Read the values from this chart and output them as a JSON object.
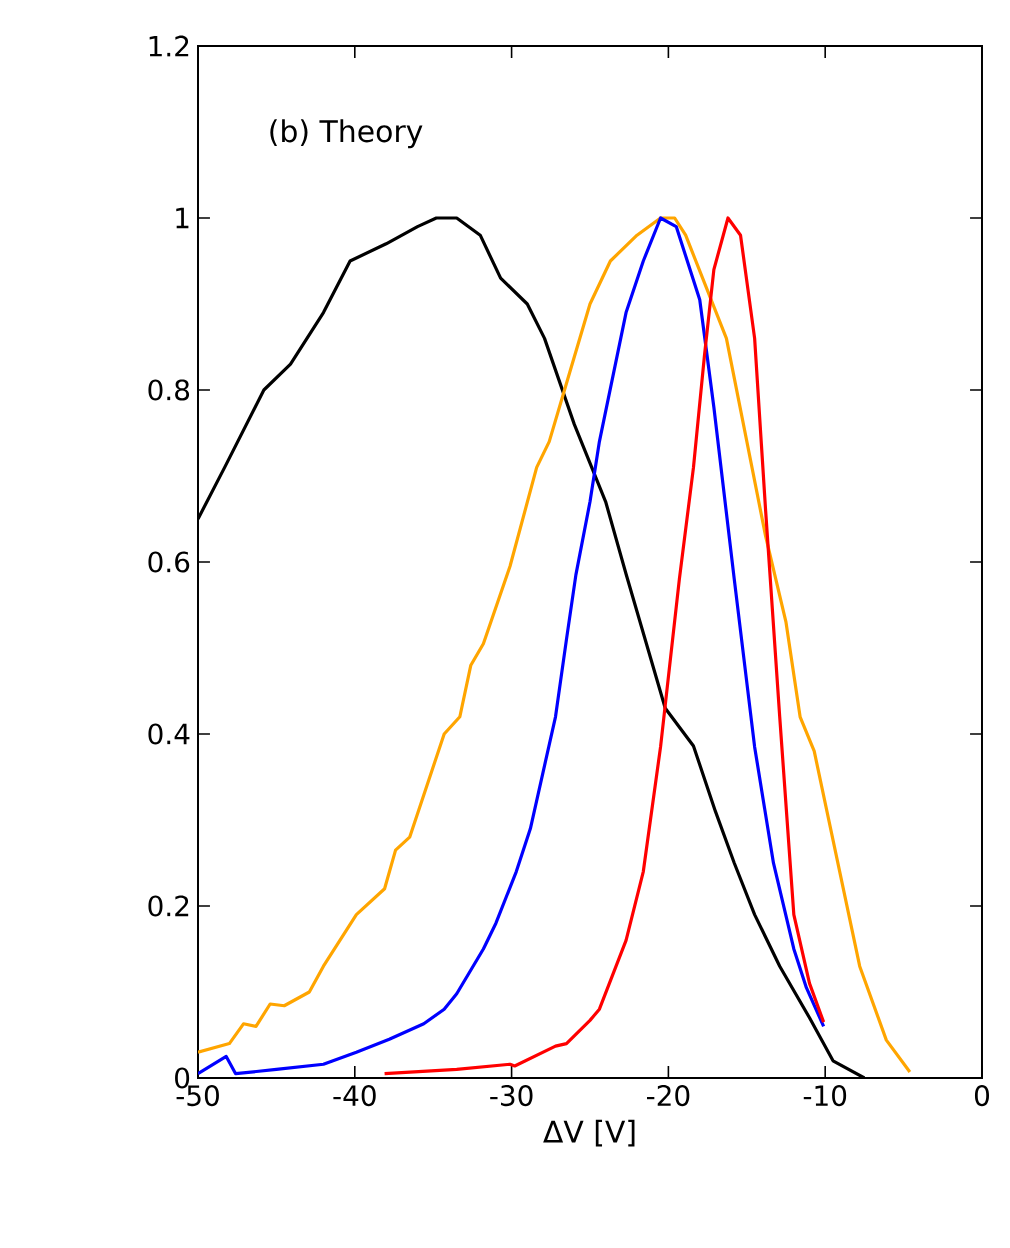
{
  "chart_data": {
    "type": "line",
    "xlabel": "ΔV [V]",
    "annotations": [
      "(b) Theory"
    ],
    "xlim": [
      -50,
      0
    ],
    "xticks": [
      -50,
      -40,
      -30,
      -20,
      -10,
      0
    ],
    "ylim": [
      0,
      1.2
    ],
    "yticks": [
      0,
      0.2,
      0.4,
      0.6,
      0.8,
      1,
      1.2
    ],
    "grid": false,
    "marker": "none",
    "line_style": "solid",
    "series": [
      {
        "color": "#000000",
        "x": [
          -50,
          -48.3,
          -45.8,
          -44.1,
          -42,
          -40.3,
          -38,
          -36,
          -34.8,
          -33.5,
          -32,
          -30.7,
          -29,
          -27.9,
          -26,
          -24,
          -22.7,
          -20.2,
          -18.4,
          -17,
          -15.8,
          -14.5,
          -12.9,
          -11,
          -9.5,
          -7.5
        ],
        "values": [
          0.65,
          0.71,
          0.8,
          0.83,
          0.89,
          0.95,
          0.97,
          0.99,
          1.0,
          1.0,
          0.98,
          0.93,
          0.9,
          0.86,
          0.76,
          0.67,
          0.586,
          0.43,
          0.386,
          0.31,
          0.25,
          0.19,
          0.13,
          0.07,
          0.02,
          0
        ]
      },
      {
        "color": "#ffa500",
        "x": [
          -50,
          -48,
          -47.1,
          -46.3,
          -45.4,
          -44.5,
          -42.9,
          -42,
          -39.9,
          -38.1,
          -37.4,
          -36.5,
          -34.3,
          -33.3,
          -32.6,
          -31.8,
          -30.1,
          -28.4,
          -27.6,
          -26.3,
          -25,
          -23.7,
          -22,
          -20.5,
          -19.6,
          -18.9,
          -16.3,
          -13.8,
          -12.5,
          -11.6,
          -10.7,
          -7.8,
          -6.1,
          -4.6
        ],
        "values": [
          0.03,
          0.04,
          0.063,
          0.06,
          0.086,
          0.084,
          0.1,
          0.13,
          0.19,
          0.22,
          0.265,
          0.28,
          0.4,
          0.42,
          0.48,
          0.505,
          0.595,
          0.71,
          0.74,
          0.82,
          0.9,
          0.95,
          0.98,
          1.0,
          1.0,
          0.98,
          0.86,
          0.63,
          0.53,
          0.42,
          0.38,
          0.13,
          0.044,
          0.007
        ]
      },
      {
        "color": "#0000ff",
        "x": [
          -50,
          -48.2,
          -47.6,
          -45,
          -42,
          -39.9,
          -37.8,
          -35.6,
          -34.3,
          -33.5,
          -31.8,
          -31,
          -29.7,
          -28.8,
          -27.2,
          -26.5,
          -25.9,
          -25,
          -24.4,
          -22.7,
          -21.6,
          -20.5,
          -19.5,
          -18,
          -17.1,
          -15.8,
          -14.5,
          -13.3,
          -12,
          -11.2,
          -10.1
        ],
        "values": [
          0.005,
          0.025,
          0.005,
          0.01,
          0.016,
          0.03,
          0.045,
          0.063,
          0.08,
          0.098,
          0.15,
          0.18,
          0.24,
          0.29,
          0.42,
          0.51,
          0.585,
          0.67,
          0.74,
          0.89,
          0.95,
          1.0,
          0.99,
          0.905,
          0.78,
          0.58,
          0.385,
          0.25,
          0.15,
          0.105,
          0.06
        ]
      },
      {
        "color": "#ff0000",
        "x": [
          -38.1,
          -33.5,
          -30.1,
          -29.8,
          -27.2,
          -26.5,
          -25,
          -24.4,
          -22.7,
          -21.6,
          -20.5,
          -19.3,
          -18.4,
          -17.7,
          -17.1,
          -16.2,
          -15.4,
          -14.5,
          -13.8,
          -12.9,
          -12,
          -11,
          -10.1
        ],
        "values": [
          0.005,
          0.01,
          0.016,
          0.014,
          0.037,
          0.04,
          0.067,
          0.08,
          0.16,
          0.24,
          0.385,
          0.58,
          0.71,
          0.84,
          0.94,
          1.0,
          0.98,
          0.86,
          0.66,
          0.42,
          0.19,
          0.11,
          0.065
        ]
      }
    ]
  }
}
